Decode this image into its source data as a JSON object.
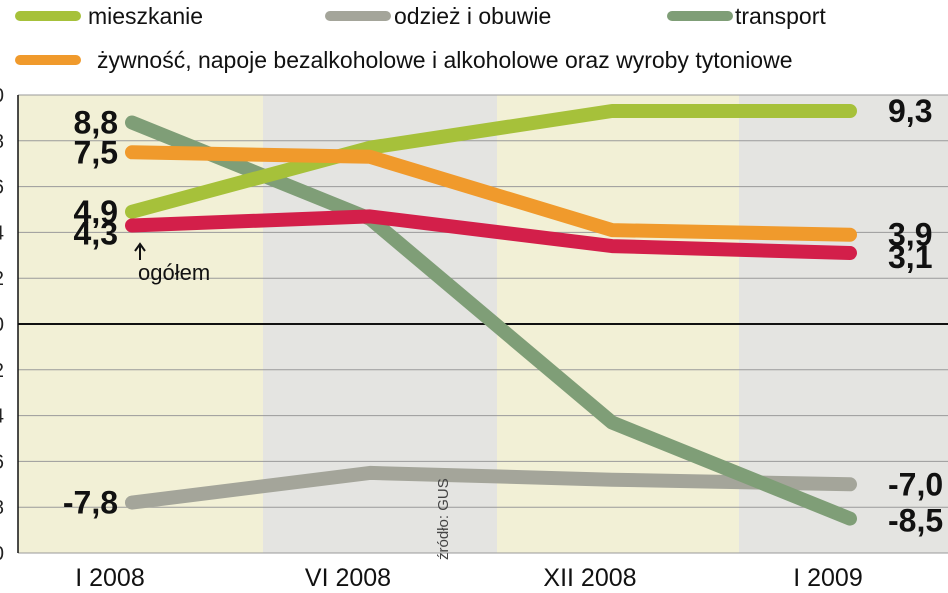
{
  "chart_data": {
    "type": "line",
    "categories": [
      "I 2008",
      "VI 2008",
      "XII 2008",
      "I 2009"
    ],
    "ylim": [
      -10,
      10
    ],
    "y_ticks": [
      "0",
      "8",
      "6",
      "4",
      "2",
      "0",
      "2",
      "4",
      "6",
      "8",
      "0"
    ],
    "grid": true,
    "legend_position": "top",
    "series": [
      {
        "name": "mieszkanie",
        "key": "mieszkanie",
        "color": "#a6c13a",
        "values": [
          4.9,
          7.7,
          9.3,
          9.3
        ]
      },
      {
        "name": "odzież i obuwie",
        "key": "odziez",
        "color": "#a4a59a",
        "values": [
          -7.8,
          -6.5,
          -6.8,
          -7.0
        ]
      },
      {
        "name": "transport",
        "key": "transport",
        "color": "#7f9e77",
        "values": [
          8.8,
          4.6,
          -4.3,
          -8.5
        ]
      },
      {
        "name": "żywność, napoje bezalkoholowe i alkoholowe oraz wyroby tytoniowe",
        "key": "zywnosc",
        "color": "#f09a2c",
        "values": [
          7.5,
          7.3,
          4.1,
          3.9
        ]
      },
      {
        "name": "",
        "key": "ogolem",
        "color": "#d31f4a",
        "values": [
          4.3,
          4.7,
          3.4,
          3.1
        ]
      }
    ],
    "start_labels": [
      {
        "series": "transport",
        "text": "8,8"
      },
      {
        "series": "zywnosc",
        "text": "7,5"
      },
      {
        "series": "mieszkanie",
        "text": "4,9"
      },
      {
        "series": "ogolem",
        "text": "4,3"
      },
      {
        "series": "odziez",
        "text": "-7,8"
      }
    ],
    "end_labels": [
      {
        "series": "mieszkanie",
        "text": "9,3"
      },
      {
        "series": "zywnosc",
        "text": "3,9"
      },
      {
        "series": "ogolem",
        "text": "3,1"
      },
      {
        "series": "odziez",
        "text": "-7,0"
      },
      {
        "series": "transport",
        "text": "-8,5"
      }
    ],
    "annotation": "ogółem",
    "source": "źródło: GUS",
    "colors": {
      "band_light": "#f2f0d6",
      "band_dark": "#e4e4e1",
      "grid": "#9a9a9a",
      "zero_line": "#111111"
    }
  }
}
